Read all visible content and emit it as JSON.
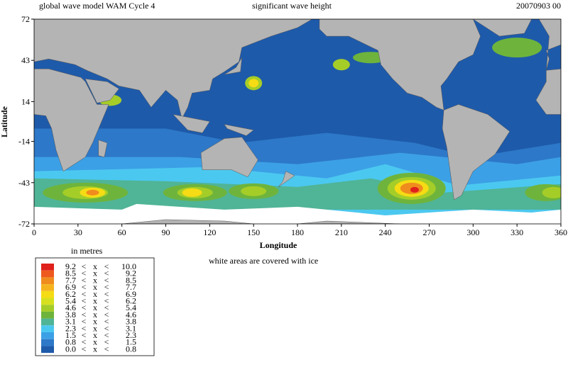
{
  "header": {
    "model": "global wave model WAM Cycle 4",
    "field": "significant wave height",
    "datetime": "20070903 00"
  },
  "map": {
    "xlim": [
      0,
      360
    ],
    "ylim": [
      -72,
      72
    ],
    "xticks": [
      0,
      30,
      60,
      90,
      120,
      150,
      180,
      210,
      240,
      270,
      300,
      330,
      360
    ],
    "yticks": [
      72,
      43,
      14,
      -14,
      -43,
      -72
    ],
    "xlabel": "Longitude",
    "ylabel": "Latitude"
  },
  "units": "in metres",
  "ice_note": "white areas are covered with ice",
  "legend": {
    "operator": "<",
    "variable": "x",
    "rows": [
      {
        "low": "9.2",
        "high": "10.0",
        "color": "#e0201b"
      },
      {
        "low": "8.5",
        "high": "9.2",
        "color": "#ee5a1e"
      },
      {
        "low": "7.7",
        "high": "8.5",
        "color": "#f08c1e"
      },
      {
        "low": "6.9",
        "high": "7.7",
        "color": "#f5b41e"
      },
      {
        "low": "6.2",
        "high": "6.9",
        "color": "#f5dc14"
      },
      {
        "low": "5.4",
        "high": "6.2",
        "color": "#d6e01e"
      },
      {
        "low": "4.6",
        "high": "5.4",
        "color": "#a5cd28"
      },
      {
        "low": "3.8",
        "high": "4.6",
        "color": "#6eb43c"
      },
      {
        "low": "3.1",
        "high": "3.8",
        "color": "#50b496"
      },
      {
        "low": "2.3",
        "high": "3.1",
        "color": "#4bc8f0"
      },
      {
        "low": "1.5",
        "high": "2.3",
        "color": "#3ca0e6"
      },
      {
        "low": "0.8",
        "high": "1.5",
        "color": "#2d78c8"
      },
      {
        "low": "0.0",
        "high": "0.8",
        "color": "#1e5aaa"
      }
    ]
  }
}
